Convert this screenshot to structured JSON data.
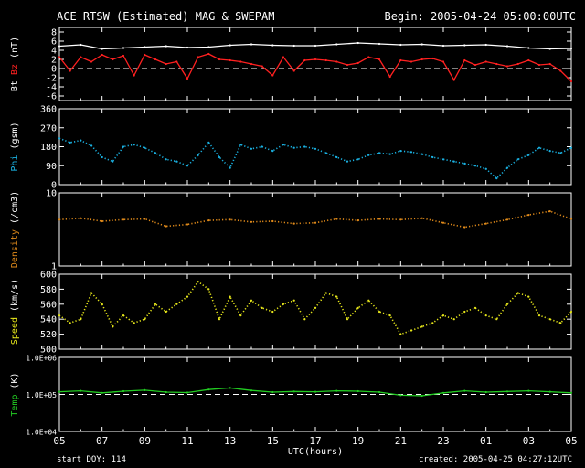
{
  "header": {
    "title": "ACE RTSW (Estimated) MAG & SWEPAM",
    "begin": "Begin: 2005-04-24 05:00:00UTC"
  },
  "footer": {
    "start_doy": "start DOY: 114",
    "created": "created: 2005-04-25 04:27:12UTC"
  },
  "colors": {
    "background": "#000000",
    "axes": "#ffffff",
    "bt": "#ffffff",
    "bz": "#ff2020",
    "phi": "#1ab0e0",
    "density": "#e08a1a",
    "speed": "#e6e61a",
    "temp": "#22cc22"
  },
  "chart_data": {
    "type": "line",
    "x_unit": "hours since 2005-04-24 05:00 UTC",
    "x_range": [
      0,
      24
    ],
    "x_ticks": [
      "05",
      "07",
      "09",
      "11",
      "13",
      "15",
      "17",
      "19",
      "21",
      "23",
      "01",
      "03",
      "05"
    ],
    "xlabel": "UTC(hours)",
    "panels": [
      {
        "id": "mag",
        "ylabel_parts": [
          {
            "text": "Bt",
            "color": "#ffffff"
          },
          {
            "text": "Bz",
            "color": "#ff2020"
          },
          {
            "text": "(nT)",
            "color": "#ffffff"
          }
        ],
        "ylim": [
          -7,
          9
        ],
        "yticks": [
          -6,
          -4,
          -2,
          0,
          2,
          4,
          6,
          8
        ],
        "scale": "linear",
        "dashed_zero": true,
        "series": [
          {
            "name": "Bt",
            "color": "#ffffff",
            "style": "line",
            "x": [
              0,
              1,
              2,
              3,
              4,
              5,
              6,
              7,
              8,
              9,
              10,
              11,
              12,
              13,
              14,
              15,
              16,
              17,
              18,
              19,
              20,
              21,
              22,
              23,
              24
            ],
            "y": [
              4.9,
              5.2,
              4.3,
              4.5,
              4.7,
              4.9,
              4.6,
              4.7,
              5.1,
              5.3,
              5.1,
              5.0,
              5.0,
              5.3,
              5.6,
              5.4,
              5.2,
              5.3,
              5.0,
              5.1,
              5.2,
              4.9,
              4.5,
              4.3,
              4.4
            ]
          },
          {
            "name": "Bz",
            "color": "#ff2020",
            "style": "line",
            "x": [
              0,
              0.5,
              1,
              1.5,
              2,
              2.5,
              3,
              3.5,
              4,
              4.5,
              5,
              5.5,
              6,
              6.5,
              7,
              7.5,
              8,
              8.5,
              9,
              9.5,
              10,
              10.5,
              11,
              11.5,
              12,
              12.5,
              13,
              13.5,
              14,
              14.5,
              15,
              15.5,
              16,
              16.5,
              17,
              17.5,
              18,
              18.5,
              19,
              19.5,
              20,
              20.5,
              21,
              21.5,
              22,
              22.5,
              23,
              23.5,
              24
            ],
            "y": [
              2.5,
              -0.5,
              2.5,
              1.5,
              3.0,
              2.0,
              2.8,
              -1.5,
              3.0,
              2.0,
              1.0,
              1.5,
              -2.2,
              2.5,
              3.2,
              2.0,
              1.8,
              1.5,
              1.0,
              0.5,
              -1.5,
              2.5,
              -0.5,
              1.8,
              2.0,
              1.8,
              1.5,
              0.8,
              1.2,
              2.5,
              2.0,
              -1.8,
              1.8,
              1.5,
              2.0,
              2.2,
              1.5,
              -2.5,
              1.8,
              0.8,
              1.5,
              1.0,
              0.5,
              1.0,
              1.8,
              0.8,
              1.0,
              -0.5,
              -2.8
            ]
          }
        ]
      },
      {
        "id": "phi",
        "ylabel_parts": [
          {
            "text": "Phi",
            "color": "#1ab0e0"
          },
          {
            "text": "(gsm)",
            "color": "#ffffff"
          }
        ],
        "ylim": [
          0,
          360
        ],
        "yticks": [
          0,
          90,
          180,
          270,
          360
        ],
        "scale": "linear",
        "dashed_zero": false,
        "series": [
          {
            "name": "Phi",
            "color": "#1ab0e0",
            "style": "dots",
            "x": [
              0,
              0.5,
              1,
              1.5,
              2,
              2.5,
              3,
              3.5,
              4,
              4.5,
              5,
              5.5,
              6,
              6.5,
              7,
              7.5,
              8,
              8.5,
              9,
              9.5,
              10,
              10.5,
              11,
              11.5,
              12,
              12.5,
              13,
              13.5,
              14,
              14.5,
              15,
              15.5,
              16,
              16.5,
              17,
              17.5,
              18,
              18.5,
              19,
              19.5,
              20,
              20.5,
              21,
              21.5,
              22,
              22.5,
              23,
              23.5,
              24
            ],
            "y": [
              220,
              200,
              210,
              185,
              130,
              110,
              180,
              190,
              175,
              150,
              120,
              110,
              90,
              140,
              200,
              130,
              80,
              190,
              170,
              180,
              160,
              190,
              175,
              180,
              170,
              150,
              130,
              110,
              120,
              140,
              150,
              145,
              160,
              155,
              145,
              130,
              120,
              110,
              100,
              90,
              75,
              30,
              80,
              120,
              140,
              175,
              160,
              150,
              175
            ]
          }
        ]
      },
      {
        "id": "density",
        "ylabel_parts": [
          {
            "text": "Density",
            "color": "#e08a1a"
          },
          {
            "text": "(/cm3)",
            "color": "#ffffff"
          }
        ],
        "ylim": [
          1,
          10
        ],
        "yticks": [
          1,
          10
        ],
        "scale": "log",
        "dashed_zero": false,
        "series": [
          {
            "name": "Density",
            "color": "#e08a1a",
            "style": "dots",
            "x": [
              0,
              1,
              2,
              3,
              4,
              5,
              6,
              7,
              8,
              9,
              10,
              11,
              12,
              13,
              14,
              15,
              16,
              17,
              18,
              19,
              20,
              21,
              22,
              23,
              24
            ],
            "y": [
              4.3,
              4.5,
              4.1,
              4.3,
              4.4,
              3.5,
              3.7,
              4.2,
              4.3,
              4.0,
              4.1,
              3.8,
              3.9,
              4.4,
              4.2,
              4.4,
              4.3,
              4.5,
              3.9,
              3.4,
              3.8,
              4.3,
              5.0,
              5.6,
              4.4
            ]
          }
        ]
      },
      {
        "id": "speed",
        "ylabel_parts": [
          {
            "text": "Speed",
            "color": "#e6e61a"
          },
          {
            "text": "(km/s)",
            "color": "#ffffff"
          }
        ],
        "ylim": [
          500,
          600
        ],
        "yticks": [
          500,
          520,
          540,
          560,
          580,
          600
        ],
        "scale": "linear",
        "dashed_zero": false,
        "series": [
          {
            "name": "Speed",
            "color": "#e6e61a",
            "style": "dots",
            "x": [
              0,
              0.5,
              1,
              1.5,
              2,
              2.5,
              3,
              3.5,
              4,
              4.5,
              5,
              5.5,
              6,
              6.5,
              7,
              7.5,
              8,
              8.5,
              9,
              9.5,
              10,
              10.5,
              11,
              11.5,
              12,
              12.5,
              13,
              13.5,
              14,
              14.5,
              15,
              15.5,
              16,
              16.5,
              17,
              17.5,
              18,
              18.5,
              19,
              19.5,
              20,
              20.5,
              21,
              21.5,
              22,
              22.5,
              23,
              23.5,
              24
            ],
            "y": [
              545,
              535,
              540,
              575,
              560,
              530,
              545,
              535,
              540,
              560,
              550,
              560,
              570,
              590,
              580,
              540,
              570,
              545,
              565,
              555,
              550,
              560,
              565,
              540,
              555,
              575,
              570,
              540,
              555,
              565,
              550,
              545,
              520,
              525,
              530,
              535,
              545,
              540,
              550,
              555,
              545,
              540,
              560,
              575,
              570,
              545,
              540,
              535,
              550
            ]
          }
        ]
      },
      {
        "id": "temp",
        "ylabel_parts": [
          {
            "text": "Temp",
            "color": "#22cc22"
          },
          {
            "text": "(K)",
            "color": "#ffffff"
          }
        ],
        "ylim": [
          10000,
          1000000
        ],
        "yticks": [
          10000,
          100000,
          1000000
        ],
        "ytick_labels": [
          "1.0E+04",
          "1.0E+05",
          "1.0E+06"
        ],
        "scale": "log",
        "dashed_ref": 100000,
        "series": [
          {
            "name": "Temp",
            "color": "#22cc22",
            "style": "line",
            "x": [
              0,
              1,
              2,
              3,
              4,
              5,
              6,
              7,
              8,
              9,
              10,
              11,
              12,
              13,
              14,
              15,
              16,
              17,
              18,
              19,
              20,
              21,
              22,
              23,
              24
            ],
            "y": [
              118000,
              125000,
              110000,
              122000,
              130000,
              115000,
              112000,
              135000,
              150000,
              128000,
              115000,
              120000,
              118000,
              125000,
              122000,
              115000,
              95000,
              92000,
              110000,
              125000,
              115000,
              120000,
              125000,
              118000,
              110000
            ]
          }
        ]
      }
    ]
  }
}
